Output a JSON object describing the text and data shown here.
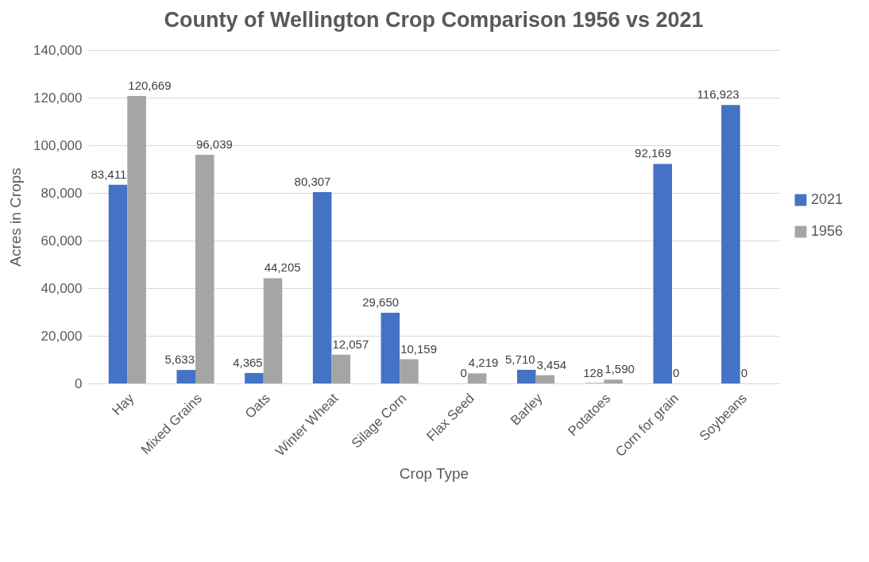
{
  "chart_data": {
    "type": "bar",
    "title": "County of Wellington Crop Comparison 1956 vs 2021",
    "xlabel": "Crop Type",
    "ylabel": "Acres in Crops",
    "categories": [
      "Hay",
      "Mixed Grains",
      "Oats",
      "Winter Wheat",
      "Silage Corn",
      "Flax Seed",
      "Barley",
      "Potatoes",
      "Corn for grain",
      "Soybeans"
    ],
    "series": [
      {
        "name": "2021",
        "color": "#4472c4",
        "values": [
          83411,
          5633,
          4365,
          80307,
          29650,
          0,
          5710,
          128,
          92169,
          116923
        ],
        "value_labels": [
          "83,411",
          "5,633",
          "4,365",
          "80,307",
          "29,650",
          "0",
          "5,710",
          "128",
          "92,169",
          "116,923"
        ]
      },
      {
        "name": "1956",
        "color": "#a5a5a5",
        "values": [
          120669,
          96039,
          44205,
          12057,
          10159,
          4219,
          3454,
          1590,
          0,
          0
        ],
        "value_labels": [
          "120,669",
          "96,039",
          "44,205",
          "12,057",
          "10,159",
          "4,219",
          "3,454",
          "1,590",
          "0",
          "0"
        ]
      }
    ],
    "ylim": [
      0,
      140000
    ],
    "yticks": [
      0,
      {
        "value": 20000,
        "label": "20,000"
      },
      {
        "value": 40000,
        "label": "40,000"
      },
      {
        "value": 60000,
        "label": "60,000"
      },
      {
        "value": 80000,
        "label": "80,000"
      },
      {
        "value": 100000,
        "label": "100,000"
      },
      {
        "value": 120000,
        "label": "120,000"
      },
      {
        "value": 140000,
        "label": "140,000"
      }
    ],
    "grid": "y",
    "legend": "right"
  }
}
